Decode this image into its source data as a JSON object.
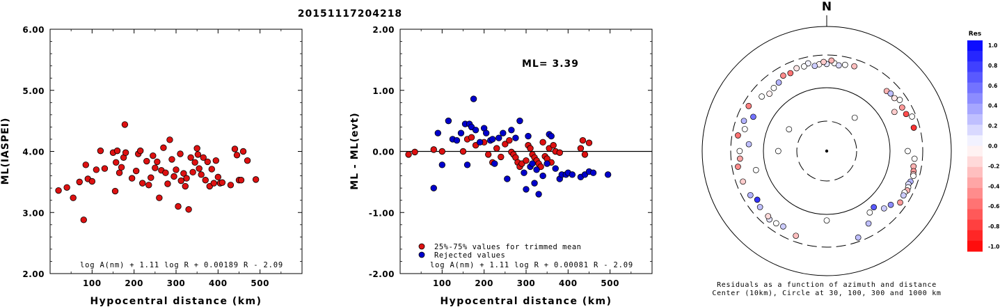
{
  "title": "20151117204218",
  "left_panel": {
    "ylabel": "ML(IASPEI)",
    "xlabel": "Hypocentral distance (km)",
    "formula": "log A(nm) + 1.11 log R + 0.00189 R - 2.09"
  },
  "middle_panel": {
    "ylabel": "ML - ML(evt)",
    "xlabel": "Hypocentral distance (km)",
    "ml_text": "ML= 3.39",
    "legend": [
      "25%-75% values for trimmed mean",
      "Rejected values"
    ],
    "formula": "log A(nm) + 1.11 log R + 0.00081 R - 2.09"
  },
  "right_panel": {
    "north_label": "N",
    "caption_line1": "Residuals as a function of azimuth and distance",
    "caption_line2": "Center (10km), Circle at 30, 100, 300 and 1000 km",
    "colorbar_title": "Res",
    "colorbar_ticks": [
      "1.0",
      "0.8",
      "0.6",
      "0.4",
      "0.2",
      "0.0",
      "-0.2",
      "-0.4",
      "-0.6",
      "-0.8",
      "-1.0"
    ]
  },
  "colors": {
    "accepted": "#dd1111",
    "rejected": "#0000cc",
    "outline": "#000000"
  },
  "chart_data": [
    {
      "type": "scatter",
      "title": "20151117204218",
      "xlabel": "Hypocentral distance (km)",
      "ylabel": "ML(IASPEI)",
      "xlim": [
        0,
        600
      ],
      "ylim": [
        2.0,
        6.0
      ],
      "yticks": [
        "2.00",
        "3.00",
        "4.00",
        "5.00",
        "6.00"
      ],
      "xticks": [
        "100",
        "200",
        "300",
        "400",
        "500"
      ],
      "series": [
        {
          "points": [
            [
              20,
              3.36
            ],
            [
              40,
              3.41
            ],
            [
              55,
              3.24
            ],
            [
              70,
              3.5
            ],
            [
              80,
              2.88
            ],
            [
              85,
              3.78
            ],
            [
              90,
              3.55
            ],
            [
              100,
              3.51
            ],
            [
              110,
              3.7
            ],
            [
              120,
              4.01
            ],
            [
              130,
              3.72
            ],
            [
              150,
              3.98
            ],
            [
              155,
              3.35
            ],
            [
              157,
              3.82
            ],
            [
              160,
              4.01
            ],
            [
              165,
              3.65
            ],
            [
              170,
              3.74
            ],
            [
              175,
              3.9
            ],
            [
              178,
              4.44
            ],
            [
              180,
              3.98
            ],
            [
              195,
              3.56
            ],
            [
              205,
              3.68
            ],
            [
              210,
              3.96
            ],
            [
              215,
              4.01
            ],
            [
              220,
              3.48
            ],
            [
              230,
              3.84
            ],
            [
              235,
              3.45
            ],
            [
              240,
              3.57
            ],
            [
              245,
              3.93
            ],
            [
              250,
              3.73
            ],
            [
              255,
              3.83
            ],
            [
              260,
              3.24
            ],
            [
              265,
              3.69
            ],
            [
              270,
              4.06
            ],
            [
              275,
              3.65
            ],
            [
              280,
              3.47
            ],
            [
              285,
              4.19
            ],
            [
              290,
              3.87
            ],
            [
              295,
              3.59
            ],
            [
              300,
              3.7
            ],
            [
              305,
              3.1
            ],
            [
              310,
              3.96
            ],
            [
              312,
              3.52
            ],
            [
              318,
              3.64
            ],
            [
              322,
              3.43
            ],
            [
              325,
              3.56
            ],
            [
              330,
              3.05
            ],
            [
              335,
              3.9
            ],
            [
              340,
              3.66
            ],
            [
              345,
              3.82
            ],
            [
              350,
              4.05
            ],
            [
              352,
              3.95
            ],
            [
              355,
              3.72
            ],
            [
              360,
              3.62
            ],
            [
              365,
              3.9
            ],
            [
              370,
              3.53
            ],
            [
              375,
              3.83
            ],
            [
              380,
              3.43
            ],
            [
              385,
              3.71
            ],
            [
              390,
              3.48
            ],
            [
              395,
              3.85
            ],
            [
              400,
              3.58
            ],
            [
              405,
              3.48
            ],
            [
              410,
              3.49
            ],
            [
              430,
              3.45
            ],
            [
              440,
              4.04
            ],
            [
              445,
              3.94
            ],
            [
              450,
              3.53
            ],
            [
              455,
              3.53
            ],
            [
              460,
              4.0
            ],
            [
              470,
              3.85
            ],
            [
              490,
              3.54
            ]
          ]
        }
      ]
    },
    {
      "type": "scatter",
      "xlabel": "Hypocentral distance (km)",
      "ylabel": "ML - ML(evt)",
      "xlim": [
        0,
        600
      ],
      "ylim": [
        -2.0,
        2.0
      ],
      "yticks": [
        "-2.00",
        "-1.00",
        "0.00",
        "1.00",
        "2.00"
      ],
      "xticks": [
        "100",
        "200",
        "300",
        "400",
        "500"
      ],
      "reference_line": 0.0,
      "series": [
        {
          "name": "25%-75% values for trimmed mean",
          "points": [
            [
              20,
              -0.05
            ],
            [
              35,
              -0.01
            ],
            [
              80,
              0.03
            ],
            [
              100,
              0.0
            ],
            [
              150,
              0.0
            ],
            [
              160,
              0.2
            ],
            [
              170,
              0.23
            ],
            [
              180,
              0.1
            ],
            [
              200,
              0.15
            ],
            [
              210,
              -0.05
            ],
            [
              220,
              -0.18
            ],
            [
              230,
              0.05
            ],
            [
              240,
              -0.09
            ],
            [
              250,
              0.12
            ],
            [
              260,
              0.18
            ],
            [
              265,
              -0.01
            ],
            [
              270,
              -0.05
            ],
            [
              275,
              -0.1
            ],
            [
              280,
              -0.18
            ],
            [
              285,
              -0.25
            ],
            [
              290,
              -0.2
            ],
            [
              300,
              -0.15
            ],
            [
              305,
              0.1
            ],
            [
              310,
              0.05
            ],
            [
              315,
              -0.05
            ],
            [
              320,
              -0.1
            ],
            [
              325,
              -0.15
            ],
            [
              330,
              -0.2
            ],
            [
              335,
              -0.25
            ],
            [
              340,
              0.15
            ],
            [
              345,
              -0.08
            ],
            [
              350,
              -0.12
            ],
            [
              355,
              0.05
            ],
            [
              360,
              -0.18
            ],
            [
              365,
              0.1
            ],
            [
              370,
              0.0
            ],
            [
              380,
              -0.02
            ],
            [
              430,
              0.05
            ],
            [
              435,
              0.18
            ],
            [
              440,
              -0.05
            ],
            [
              450,
              0.14
            ]
          ]
        },
        {
          "name": "Rejected values",
          "points": [
            [
              80,
              -0.6
            ],
            [
              90,
              0.3
            ],
            [
              100,
              -0.22
            ],
            [
              115,
              0.5
            ],
            [
              125,
              0.2
            ],
            [
              135,
              0.18
            ],
            [
              145,
              0.3
            ],
            [
              155,
              0.45
            ],
            [
              160,
              -0.22
            ],
            [
              165,
              0.45
            ],
            [
              170,
              0.4
            ],
            [
              175,
              0.86
            ],
            [
              180,
              0.35
            ],
            [
              190,
              0.15
            ],
            [
              200,
              0.38
            ],
            [
              205,
              0.3
            ],
            [
              215,
              0.18
            ],
            [
              220,
              0.2
            ],
            [
              225,
              -0.2
            ],
            [
              235,
              0.22
            ],
            [
              245,
              0.3
            ],
            [
              255,
              -0.45
            ],
            [
              265,
              0.35
            ],
            [
              275,
              0.22
            ],
            [
              285,
              0.5
            ],
            [
              295,
              -0.35
            ],
            [
              300,
              -0.62
            ],
            [
              305,
              0.25
            ],
            [
              310,
              -0.25
            ],
            [
              315,
              -0.2
            ],
            [
              320,
              -0.52
            ],
            [
              325,
              -0.3
            ],
            [
              330,
              -0.7
            ],
            [
              340,
              -0.4
            ],
            [
              350,
              -0.2
            ],
            [
              355,
              0.28
            ],
            [
              360,
              0.25
            ],
            [
              370,
              -0.28
            ],
            [
              380,
              -0.45
            ],
            [
              385,
              -0.38
            ],
            [
              395,
              -0.38
            ],
            [
              400,
              -0.35
            ],
            [
              410,
              -0.38
            ],
            [
              430,
              -0.42
            ],
            [
              440,
              -0.38
            ],
            [
              450,
              -0.33
            ],
            [
              460,
              -0.35
            ],
            [
              495,
              -0.38
            ]
          ]
        }
      ]
    },
    {
      "type": "scatter",
      "polar": true,
      "radial_scale": "log",
      "center_km": 10,
      "ring_distances_km": [
        30,
        100,
        300,
        1000
      ],
      "colorbar_range": [
        -1.0,
        1.0
      ],
      "points": [
        {
          "az": 0,
          "dist_km": 250,
          "res": 0.1
        },
        {
          "az": 355,
          "dist_km": 250,
          "res": -0.05
        },
        {
          "az": 5,
          "dist_km": 260,
          "res": 0.0
        },
        {
          "az": 8,
          "dist_km": 245,
          "res": 0.15
        },
        {
          "az": 352,
          "dist_km": 240,
          "res": 0.2
        },
        {
          "az": 358,
          "dist_km": 270,
          "res": -0.2
        },
        {
          "az": 12,
          "dist_km": 260,
          "res": 0.0
        },
        {
          "az": 3,
          "dist_km": 285,
          "res": -0.3
        },
        {
          "az": 348,
          "dist_km": 275,
          "res": 0.05
        },
        {
          "az": 345,
          "dist_km": 255,
          "res": 0.0
        },
        {
          "az": 18,
          "dist_km": 270,
          "res": -0.25
        },
        {
          "az": 340,
          "dist_km": 260,
          "res": -0.1
        },
        {
          "az": 335,
          "dist_km": 240,
          "res": -0.55
        },
        {
          "az": 330,
          "dist_km": 250,
          "res": -0.45
        },
        {
          "az": 325,
          "dist_km": 220,
          "res": 0.3
        },
        {
          "az": 320,
          "dist_km": 210,
          "res": 0.0
        },
        {
          "az": 315,
          "dist_km": 200,
          "res": -0.05
        },
        {
          "az": 310,
          "dist_km": 230,
          "res": 0.0
        },
        {
          "az": 300,
          "dist_km": 280,
          "res": -0.5
        },
        {
          "az": 295,
          "dist_km": 200,
          "res": 0.55
        },
        {
          "az": 45,
          "dist_km": 230,
          "res": -0.3
        },
        {
          "az": 48,
          "dist_km": 240,
          "res": 0.25
        },
        {
          "az": 52,
          "dist_km": 240,
          "res": -0.1
        },
        {
          "az": 55,
          "dist_km": 270,
          "res": 0.0
        },
        {
          "az": 60,
          "dist_km": 250,
          "res": -0.4
        },
        {
          "az": 65,
          "dist_km": 255,
          "res": -0.7
        },
        {
          "az": 68,
          "dist_km": 300,
          "res": 0.0
        },
        {
          "az": 75,
          "dist_km": 280,
          "res": -0.8
        },
        {
          "az": 280,
          "dist_km": 280,
          "res": -0.55
        },
        {
          "az": 275,
          "dist_km": 180,
          "res": 0.25
        },
        {
          "az": 270,
          "dist_km": 250,
          "res": 0.0
        },
        {
          "az": 265,
          "dist_km": 250,
          "res": -0.35
        },
        {
          "az": 260,
          "dist_km": 280,
          "res": -0.45
        },
        {
          "az": 255,
          "dist_km": 150,
          "res": 0.0
        },
        {
          "az": 250,
          "dist_km": 270,
          "res": -0.2
        },
        {
          "az": 95,
          "dist_km": 260,
          "res": 0.0
        },
        {
          "az": 100,
          "dist_km": 260,
          "res": -0.3
        },
        {
          "az": 103,
          "dist_km": 270,
          "res": -0.4
        },
        {
          "az": 105,
          "dist_km": 275,
          "res": -0.2
        },
        {
          "az": 106,
          "dist_km": 280,
          "res": 0.0
        },
        {
          "az": 110,
          "dist_km": 270,
          "res": 0.3
        },
        {
          "az": 112,
          "dist_km": 260,
          "res": 0.15
        },
        {
          "az": 114,
          "dist_km": 270,
          "res": 0.0
        },
        {
          "az": 116,
          "dist_km": 275,
          "res": -0.3
        },
        {
          "az": 118,
          "dist_km": 260,
          "res": 0.0
        },
        {
          "az": 120,
          "dist_km": 265,
          "res": 0.2
        },
        {
          "az": 125,
          "dist_km": 275,
          "res": -0.4
        },
        {
          "az": 130,
          "dist_km": 220,
          "res": 0.45
        },
        {
          "az": 135,
          "dist_km": 200,
          "res": 0.2
        },
        {
          "az": 140,
          "dist_km": 150,
          "res": 0.65
        },
        {
          "az": 145,
          "dist_km": 160,
          "res": 0.0
        },
        {
          "az": 150,
          "dist_km": 220,
          "res": 0.25
        },
        {
          "az": 160,
          "dist_km": 300,
          "res": 0.25
        },
        {
          "az": 200,
          "dist_km": 280,
          "res": -0.25
        },
        {
          "az": 210,
          "dist_km": 250,
          "res": 0.2
        },
        {
          "az": 215,
          "dist_km": 260,
          "res": 0.0
        },
        {
          "az": 220,
          "dist_km": 270,
          "res": 0.1
        },
        {
          "az": 222,
          "dist_km": 255,
          "res": -0.15
        },
        {
          "az": 230,
          "dist_km": 250,
          "res": 0.25
        },
        {
          "az": 235,
          "dist_km": 230,
          "res": 0.8
        },
        {
          "az": 240,
          "dist_km": 260,
          "res": 0.3
        },
        {
          "az": 180,
          "dist_km": 130,
          "res": 0.0
        },
        {
          "az": 90,
          "dist_km": 200,
          "res": 0.0
        },
        {
          "az": 270,
          "dist_km": 60,
          "res": 0.0
        },
        {
          "az": 300,
          "dist_km": 50,
          "res": 0.0
        },
        {
          "az": 40,
          "dist_km": 50,
          "res": 0.0
        },
        {
          "az": 285,
          "dist_km": 230,
          "res": 0.0
        },
        {
          "az": 290,
          "dist_km": 260,
          "res": 0.3
        },
        {
          "az": 60,
          "dist_km": 180,
          "res": -0.2
        }
      ]
    }
  ]
}
